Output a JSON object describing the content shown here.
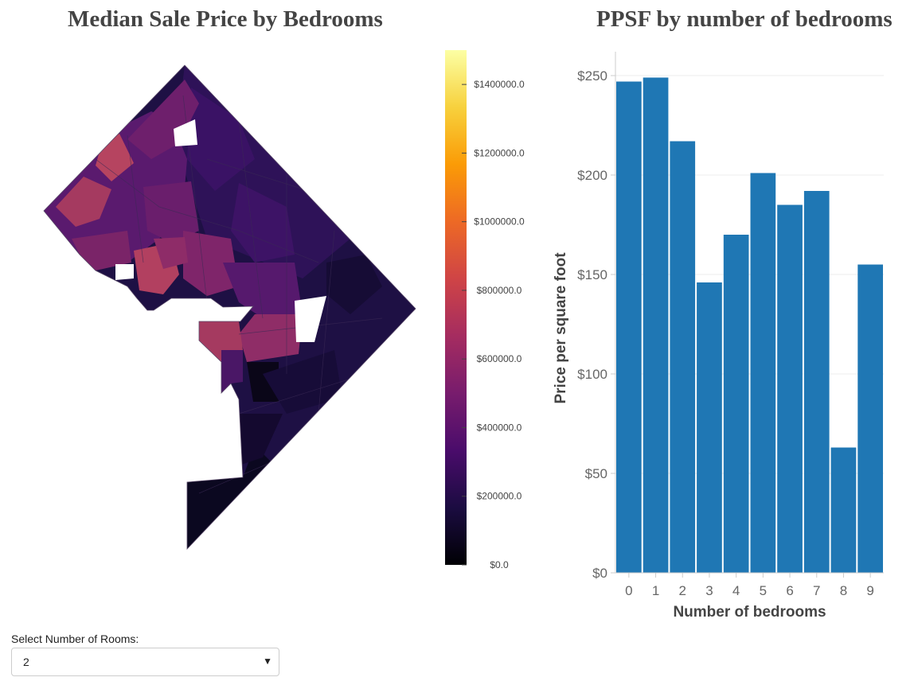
{
  "map_panel": {
    "title": "Median Sale Price by Bedrooms",
    "colorbar": {
      "min": 0,
      "max": 1500000,
      "tick_values": [
        0,
        200000,
        400000,
        600000,
        800000,
        1000000,
        1200000,
        1400000
      ],
      "tick_labels": [
        "$0.0",
        "$200000.0",
        "$400000.0",
        "$600000.0",
        "$800000.0",
        "$1000000.0",
        "$1200000.0",
        "$1400000.0"
      ],
      "colorscale": [
        "#000004",
        "#1b0c41",
        "#4a0c6b",
        "#781c6d",
        "#a52c60",
        "#cf4446",
        "#ed6925",
        "#fb9b06",
        "#f7d13d",
        "#fcffa4"
      ]
    }
  },
  "chart_data": {
    "type": "bar",
    "title": "PPSF by number of bedrooms",
    "categories": [
      "0",
      "1",
      "2",
      "3",
      "4",
      "5",
      "6",
      "7",
      "8",
      "9"
    ],
    "values": [
      247,
      249,
      217,
      146,
      170,
      201,
      185,
      192,
      63,
      155
    ],
    "xlabel": "Number of bedrooms",
    "ylabel": "Price per square foot",
    "ylim": [
      0,
      262
    ],
    "yticks": [
      0,
      50,
      100,
      150,
      200,
      250
    ],
    "ytick_labels": [
      "$0",
      "$50",
      "$100",
      "$150",
      "$200",
      "$250"
    ],
    "bar_color": "#1f77b4",
    "grid": true
  },
  "controls": {
    "label": "Select Number of Rooms:",
    "selected_value": "2"
  }
}
